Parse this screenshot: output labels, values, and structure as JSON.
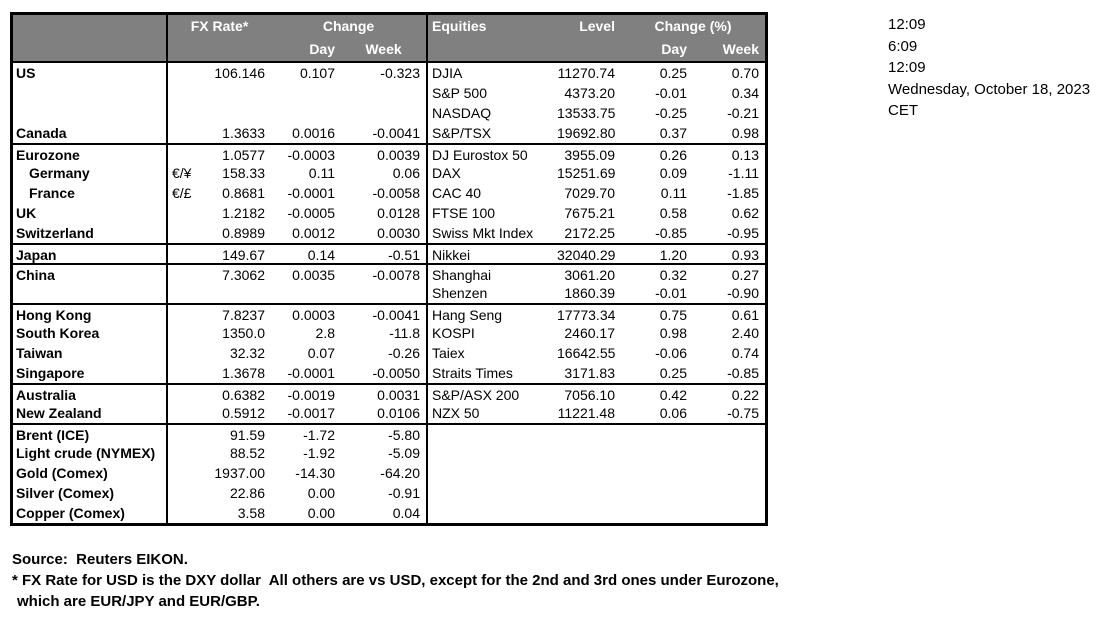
{
  "colors": {
    "header_bg": "#808080",
    "header_text": "#ffffff",
    "border": "#000000",
    "text": "#000000"
  },
  "clock": {
    "lines": [
      "12:09",
      "6:09",
      "12:09",
      "Wednesday, October 18, 2023",
      "CET"
    ]
  },
  "table": {
    "header": {
      "fx_rate": "FX Rate*",
      "fx_change": "Change",
      "fx_day": "Day",
      "fx_week": "Week",
      "equities": "Equities",
      "level": "Level",
      "eq_change": "Change (%)",
      "eq_day": "Day",
      "eq_week": "Week"
    },
    "rows": [
      {
        "name": "US",
        "pair": "",
        "fx": "106.146",
        "fx_day": "0.107",
        "fx_week": "-0.323",
        "eq": "DJIA",
        "level": "11270.74",
        "eq_day": "0.25",
        "eq_week": "0.70"
      },
      {
        "name": "",
        "pair": "",
        "fx": "",
        "fx_day": "",
        "fx_week": "",
        "eq": "S&P 500",
        "level": "4373.20",
        "eq_day": "-0.01",
        "eq_week": "0.34"
      },
      {
        "name": "",
        "pair": "",
        "fx": "",
        "fx_day": "",
        "fx_week": "",
        "eq": "NASDAQ",
        "level": "13533.75",
        "eq_day": "-0.25",
        "eq_week": "-0.21"
      },
      {
        "name": "Canada",
        "pair": "",
        "fx": "1.3633",
        "fx_day": "0.0016",
        "fx_week": "-0.0041",
        "eq": "S&P/TSX",
        "level": "19692.80",
        "eq_day": "0.37",
        "eq_week": "0.98"
      },
      {
        "name": "Eurozone",
        "pair": "",
        "fx": "1.0577",
        "fx_day": "-0.0003",
        "fx_week": "0.0039",
        "eq": "DJ Eurostox 50",
        "level": "3955.09",
        "eq_day": "0.26",
        "eq_week": "0.13",
        "divider": true
      },
      {
        "name": "Germany",
        "indent": true,
        "pair": "€/¥",
        "fx": "158.33",
        "fx_day": "0.11",
        "fx_week": "0.06",
        "eq": "DAX",
        "level": "15251.69",
        "eq_day": "0.09",
        "eq_week": "-1.11"
      },
      {
        "name": "France",
        "indent": true,
        "pair": "€/£",
        "fx": "0.8681",
        "fx_day": "-0.0001",
        "fx_week": "-0.0058",
        "eq": "CAC 40",
        "level": "7029.70",
        "eq_day": "0.11",
        "eq_week": "-1.85"
      },
      {
        "name": "UK",
        "pair": "",
        "fx": "1.2182",
        "fx_day": "-0.0005",
        "fx_week": "0.0128",
        "eq": "FTSE 100",
        "level": "7675.21",
        "eq_day": "0.58",
        "eq_week": "0.62"
      },
      {
        "name": "Switzerland",
        "pair": "",
        "fx": "0.8989",
        "fx_day": "0.0012",
        "fx_week": "0.0030",
        "eq": "Swiss Mkt Index",
        "level": "2172.25",
        "eq_day": "-0.85",
        "eq_week": "-0.95"
      },
      {
        "name": "Japan",
        "pair": "",
        "fx": "149.67",
        "fx_day": "0.14",
        "fx_week": "-0.51",
        "eq": "Nikkei",
        "level": "32040.29",
        "eq_day": "1.20",
        "eq_week": "0.93",
        "divider": true
      },
      {
        "name": "China",
        "pair": "",
        "fx": "7.3062",
        "fx_day": "0.0035",
        "fx_week": "-0.0078",
        "eq": "Shanghai",
        "level": "3061.20",
        "eq_day": "0.32",
        "eq_week": "0.27",
        "divider": true
      },
      {
        "name": "",
        "pair": "",
        "fx": "",
        "fx_day": "",
        "fx_week": "",
        "eq": "Shenzen",
        "level": "1860.39",
        "eq_day": "-0.01",
        "eq_week": "-0.90"
      },
      {
        "name": "Hong Kong",
        "pair": "",
        "fx": "7.8237",
        "fx_day": "0.0003",
        "fx_week": "-0.0041",
        "eq": "Hang Seng",
        "level": "17773.34",
        "eq_day": "0.75",
        "eq_week": "0.61",
        "divider": true
      },
      {
        "name": "South Korea",
        "pair": "",
        "fx": "1350.0",
        "fx_day": "2.8",
        "fx_week": "-11.8",
        "eq": "KOSPI",
        "level": "2460.17",
        "eq_day": "0.98",
        "eq_week": "2.40"
      },
      {
        "name": "Taiwan",
        "pair": "",
        "fx": "32.32",
        "fx_day": "0.07",
        "fx_week": "-0.26",
        "eq": "Taiex",
        "level": "16642.55",
        "eq_day": "-0.06",
        "eq_week": "0.74"
      },
      {
        "name": "Singapore",
        "pair": "",
        "fx": "1.3678",
        "fx_day": "-0.0001",
        "fx_week": "-0.0050",
        "eq": "Straits Times",
        "level": "3171.83",
        "eq_day": "0.25",
        "eq_week": "-0.85"
      },
      {
        "name": "Australia",
        "pair": "",
        "fx": "0.6382",
        "fx_day": "-0.0019",
        "fx_week": "0.0031",
        "eq": "S&P/ASX 200",
        "level": "7056.10",
        "eq_day": "0.42",
        "eq_week": "0.22",
        "divider": true
      },
      {
        "name": "New Zealand",
        "pair": "",
        "fx": "0.5912",
        "fx_day": "-0.0017",
        "fx_week": "0.0106",
        "eq": "NZX 50",
        "level": "11221.48",
        "eq_day": "0.06",
        "eq_week": "-0.75"
      },
      {
        "name": "Brent (ICE)",
        "pair": "",
        "fx": "91.59",
        "fx_day": "-1.72",
        "fx_week": "-5.80",
        "eq": "",
        "level": "",
        "eq_day": "",
        "eq_week": "",
        "divider": true
      },
      {
        "name": "Light crude (NYMEX)",
        "pair": "",
        "fx": "88.52",
        "fx_day": "-1.92",
        "fx_week": "-5.09",
        "eq": "",
        "level": "",
        "eq_day": "",
        "eq_week": ""
      },
      {
        "name": "Gold (Comex)",
        "pair": "",
        "fx": "1937.00",
        "fx_day": "-14.30",
        "fx_week": "-64.20",
        "eq": "",
        "level": "",
        "eq_day": "",
        "eq_week": ""
      },
      {
        "name": "Silver (Comex)",
        "pair": "",
        "fx": "22.86",
        "fx_day": "0.00",
        "fx_week": "-0.91",
        "eq": "",
        "level": "",
        "eq_day": "",
        "eq_week": ""
      },
      {
        "name": "Copper (Comex)",
        "pair": "",
        "fx": "3.58",
        "fx_day": "0.00",
        "fx_week": "0.04",
        "eq": "",
        "level": "",
        "eq_day": "",
        "eq_week": ""
      }
    ]
  },
  "footer": {
    "source": "Source:  Reuters EIKON.",
    "note1": "* FX Rate for USD is the DXY dollar  All others are vs USD, except for the 2nd and 3rd ones under Eurozone,",
    "note2": "which are EUR/JPY and EUR/GBP."
  }
}
